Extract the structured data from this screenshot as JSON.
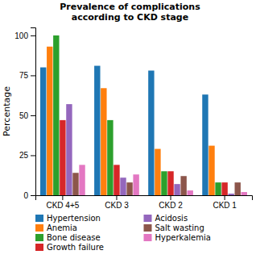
{
  "chart_data": {
    "type": "bar",
    "title": "Prevalence of complications\naccording to CKD stage",
    "ylabel": "Percentage",
    "categories": [
      "CKD 4+5",
      "CKD 3",
      "CKD 2",
      "CKD 1"
    ],
    "series": [
      {
        "name": "Hypertension",
        "values": [
          80,
          81,
          78,
          63
        ]
      },
      {
        "name": "Anemia",
        "values": [
          93,
          67,
          29,
          31
        ]
      },
      {
        "name": "Bone disease",
        "values": [
          100,
          47,
          15,
          8
        ]
      },
      {
        "name": "Growth failure",
        "values": [
          47,
          19,
          15,
          8
        ]
      },
      {
        "name": "Acidosis",
        "values": [
          57,
          11,
          7,
          1
        ]
      },
      {
        "name": "Salt wasting",
        "values": [
          14,
          8,
          12,
          8
        ]
      },
      {
        "name": "Hyperkalemia",
        "values": [
          19,
          13,
          3,
          2
        ]
      }
    ],
    "ylim": [
      0,
      105
    ],
    "yticks": [
      0,
      25,
      50,
      75,
      100
    ],
    "grid": false,
    "legend": "bottom"
  }
}
